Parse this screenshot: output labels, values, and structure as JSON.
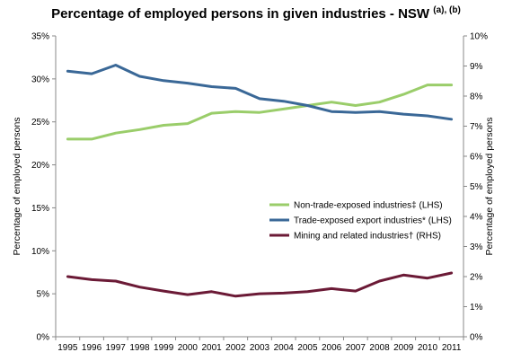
{
  "chart_data": {
    "type": "line",
    "title": "Percentage of employed persons in given industries - NSW",
    "title_superscript": "(a), (b)",
    "ylabel": "Percentage of employed persons",
    "ylabel_right": "Percentage of employed persons",
    "categories": [
      "1995",
      "1996",
      "1997",
      "1998",
      "1999",
      "2000",
      "2001",
      "2002",
      "2003",
      "2004",
      "2005",
      "2006",
      "2007",
      "2008",
      "2009",
      "2010",
      "2011"
    ],
    "ylim": [
      0,
      35
    ],
    "ylim_right": [
      0,
      10
    ],
    "yticks_left": [
      "0%",
      "5%",
      "10%",
      "15%",
      "20%",
      "25%",
      "30%",
      "35%"
    ],
    "yticks_right": [
      "0%",
      "1%",
      "2%",
      "3%",
      "4%",
      "5%",
      "6%",
      "7%",
      "8%",
      "9%",
      "10%"
    ],
    "series": [
      {
        "name": "Non-trade-exposed industries‡ (LHS)",
        "axis": "left",
        "color": "#9ACD6A",
        "values": [
          23.0,
          23.0,
          23.7,
          24.1,
          24.6,
          24.8,
          26.0,
          26.2,
          26.1,
          26.5,
          26.9,
          27.3,
          26.9,
          27.3,
          28.2,
          29.3,
          29.3
        ]
      },
      {
        "name": "Trade-exposed export industries* (LHS)",
        "axis": "left",
        "color": "#3A6897",
        "values": [
          30.9,
          30.6,
          31.6,
          30.3,
          29.8,
          29.5,
          29.1,
          28.9,
          27.7,
          27.4,
          26.9,
          26.2,
          26.1,
          26.2,
          25.9,
          25.7,
          25.3
        ]
      },
      {
        "name": "Mining and related industries† (RHS)",
        "axis": "right",
        "color": "#6B1A36",
        "values": [
          2.0,
          1.9,
          1.85,
          1.65,
          1.52,
          1.4,
          1.5,
          1.35,
          1.43,
          1.45,
          1.5,
          1.6,
          1.52,
          1.85,
          2.05,
          1.95,
          2.12
        ]
      }
    ],
    "legend_position": "lower-right inside plot",
    "grid": false
  }
}
